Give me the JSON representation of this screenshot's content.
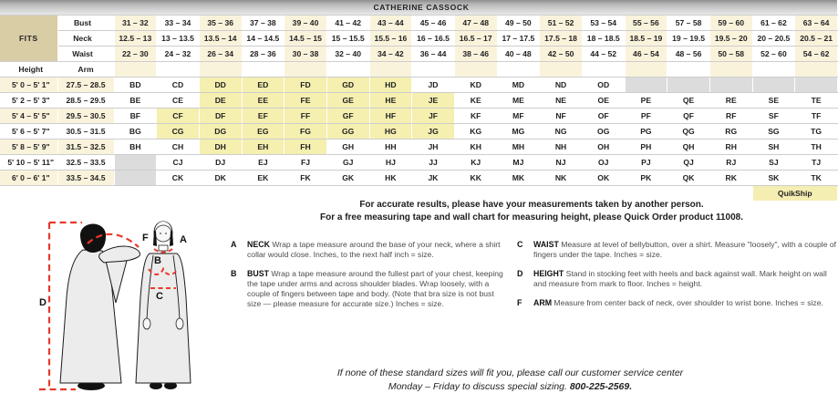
{
  "title": "CATHERINE CASSOCK",
  "fits_label": "FITS",
  "labels": {
    "bust": "Bust",
    "neck": "Neck",
    "waist": "Waist",
    "height": "Height",
    "arm": "Arm"
  },
  "quikship_label": "QuikShip",
  "size_table": {
    "bust": [
      "31 – 32",
      "33 – 34",
      "35 – 36",
      "37 – 38",
      "39 – 40",
      "41 – 42",
      "43 – 44",
      "45 – 46",
      "47 – 48",
      "49 – 50",
      "51 – 52",
      "53 – 54",
      "55 – 56",
      "57 – 58",
      "59 – 60",
      "61 – 62",
      "63 – 64"
    ],
    "neck": [
      "12.5 – 13",
      "13 – 13.5",
      "13.5 – 14",
      "14 – 14.5",
      "14.5 – 15",
      "15 – 15.5",
      "15.5 – 16",
      "16 – 16.5",
      "16.5 – 17",
      "17 – 17.5",
      "17.5 – 18",
      "18 – 18.5",
      "18.5 – 19",
      "19 – 19.5",
      "19.5 – 20",
      "20 – 20.5",
      "20.5 – 21"
    ],
    "waist": [
      "22 – 30",
      "24 – 32",
      "26 – 34",
      "28 – 36",
      "30 – 38",
      "32 – 40",
      "34 – 42",
      "36 – 44",
      "38 – 46",
      "40 – 48",
      "42 – 50",
      "44 – 52",
      "46 – 54",
      "48 – 56",
      "50 – 58",
      "52 – 60",
      "54 – 62"
    ],
    "rows": [
      {
        "height": "5' 0 – 5' 1\"",
        "arm": "27.5 – 28.5",
        "sizes": [
          "BD",
          "CD",
          "DD",
          "ED",
          "FD",
          "GD",
          "HD",
          "JD",
          "KD",
          "MD",
          "ND",
          "OD",
          "",
          "",
          "",
          "",
          ""
        ],
        "quikship": [
          2,
          3,
          4,
          5,
          6
        ],
        "blocked": [
          12,
          13,
          14,
          15,
          16
        ]
      },
      {
        "height": "5' 2 – 5' 3\"",
        "arm": "28.5 – 29.5",
        "sizes": [
          "BE",
          "CE",
          "DE",
          "EE",
          "FE",
          "GE",
          "HE",
          "JE",
          "KE",
          "ME",
          "NE",
          "OE",
          "PE",
          "QE",
          "RE",
          "SE",
          "TE"
        ],
        "quikship": [
          2,
          3,
          4,
          5,
          6,
          7
        ],
        "blocked": []
      },
      {
        "height": "5' 4 – 5' 5\"",
        "arm": "29.5 – 30.5",
        "sizes": [
          "BF",
          "CF",
          "DF",
          "EF",
          "FF",
          "GF",
          "HF",
          "JF",
          "KF",
          "MF",
          "NF",
          "OF",
          "PF",
          "QF",
          "RF",
          "SF",
          "TF"
        ],
        "quikship": [
          1,
          2,
          3,
          4,
          5,
          6,
          7
        ],
        "blocked": []
      },
      {
        "height": "5' 6 – 5' 7\"",
        "arm": "30.5 – 31.5",
        "sizes": [
          "BG",
          "CG",
          "DG",
          "EG",
          "FG",
          "GG",
          "HG",
          "JG",
          "KG",
          "MG",
          "NG",
          "OG",
          "PG",
          "QG",
          "RG",
          "SG",
          "TG"
        ],
        "quikship": [
          1,
          2,
          3,
          4,
          5,
          6,
          7
        ],
        "blocked": []
      },
      {
        "height": "5' 8 – 5' 9\"",
        "arm": "31.5 – 32.5",
        "sizes": [
          "BH",
          "CH",
          "DH",
          "EH",
          "FH",
          "GH",
          "HH",
          "JH",
          "KH",
          "MH",
          "NH",
          "OH",
          "PH",
          "QH",
          "RH",
          "SH",
          "TH"
        ],
        "quikship": [
          2,
          3,
          4
        ],
        "blocked": []
      },
      {
        "height": "5' 10 – 5' 11\"",
        "arm": "32.5 – 33.5",
        "sizes": [
          "",
          "CJ",
          "DJ",
          "EJ",
          "FJ",
          "GJ",
          "HJ",
          "JJ",
          "KJ",
          "MJ",
          "NJ",
          "OJ",
          "PJ",
          "QJ",
          "RJ",
          "SJ",
          "TJ"
        ],
        "quikship": [],
        "blocked": [
          0
        ]
      },
      {
        "height": "6' 0 – 6' 1\"",
        "arm": "33.5 – 34.5",
        "sizes": [
          "",
          "CK",
          "DK",
          "EK",
          "FK",
          "GK",
          "HK",
          "JK",
          "KK",
          "MK",
          "NK",
          "OK",
          "PK",
          "QK",
          "RK",
          "SK",
          "TK"
        ],
        "quikship": [],
        "blocked": [
          0
        ]
      }
    ]
  },
  "notes": {
    "line1": "For accurate results, please have your measurements taken by another person.",
    "line2": "For a free measuring tape and wall chart for measuring height, please Quick Order product 11008."
  },
  "instructions": [
    {
      "letter": "A",
      "term": "NECK",
      "text": "Wrap a tape measure around the base of your neck, where a shirt collar would close. Inches, to the next half inch = size."
    },
    {
      "letter": "B",
      "term": "BUST",
      "text": "Wrap a tape measure around the fullest part of your chest, keeping the tape under arms and across shoulder blades. Wrap loosely, with a couple of fingers between tape and body. (Note that bra size is not bust size — please measure for accurate size.) Inches = size."
    },
    {
      "letter": "C",
      "term": "WAIST",
      "text": "Measure at level of bellybutton, over a shirt. Measure \"loosely\", with a couple of fingers under the tape. Inches = size."
    },
    {
      "letter": "D",
      "term": "HEIGHT",
      "text": "Stand in stocking feet with heels and back against wall. Mark height on wall and measure from mark to floor. Inches = height."
    },
    {
      "letter": "F",
      "term": "ARM",
      "text": "Measure from center back of neck, over shoulder to wrist bone. Inches = size."
    }
  ],
  "footer": {
    "line1": "If none of these standard sizes will fit you, please call our customer service center",
    "line2": "Monday – Friday to discuss special sizing.",
    "phone": "800-225-2569."
  },
  "figure": {
    "a": "A",
    "b": "B",
    "c": "C",
    "d": "D",
    "f": "F"
  },
  "colors": {
    "quikship_highlight": "#F5EFB0",
    "header_cream": "#FAF3DC",
    "fits_tan": "#D8CDA5",
    "blocked_gray": "#DCDCDC",
    "measure_red": "#E8392B"
  }
}
